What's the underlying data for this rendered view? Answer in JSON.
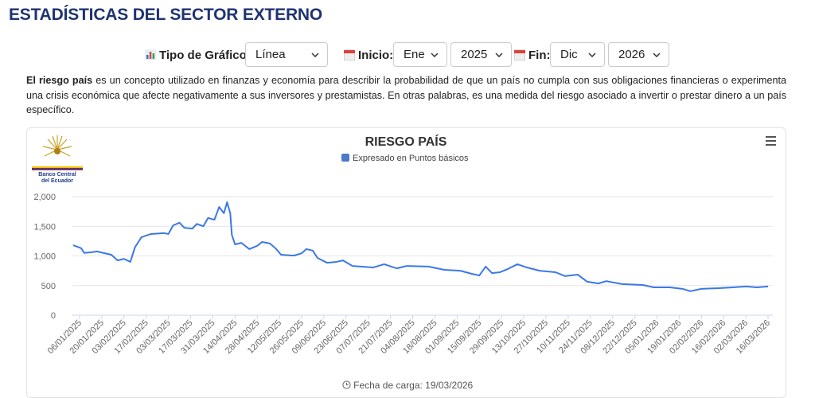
{
  "header": {
    "title": "ESTADÍSTICAS DEL SECTOR EXTERNO"
  },
  "controls": {
    "chart_type_label": "Tipo de Gráfico:",
    "chart_type": "Línea",
    "start_label": "Inicio:",
    "start_month": "Ene",
    "start_year": "2025",
    "end_label": "Fin:",
    "end_month": "Dic",
    "end_year": "2026"
  },
  "description": {
    "term": "El riesgo país",
    "text": " es un concepto utilizado en finanzas y economía para describir la probabilidad de que un país no cumpla con sus obligaciones financieras o experimenta una crisis económica que afecte negativamente a sus inversores y prestamistas. En otras palabras, es una medida del riesgo asociado a invertir o prestar dinero a un país específico."
  },
  "logo": {
    "line1": "Banco Central",
    "line2": "del Ecuador"
  },
  "chart_data": {
    "type": "line",
    "title": "RIESGO PAÍS",
    "subtitle": "Expresado en Puntos básicos",
    "color": "#3b78e7",
    "grid": true,
    "x": [
      "02/01/2025",
      "07/01/2025",
      "09/01/2025",
      "13/01/2025",
      "17/01/2025",
      "21/01/2025",
      "26/01/2025",
      "30/01/2025",
      "03/02/2025",
      "07/02/2025",
      "10/02/2025",
      "14/02/2025",
      "20/02/2025",
      "28/02/2025",
      "03/03/2025",
      "06/03/2025",
      "10/03/2025",
      "13/03/2025",
      "18/03/2025",
      "21/03/2025",
      "25/03/2025",
      "28/03/2025",
      "01/04/2025",
      "04/04/2025",
      "07/04/2025",
      "09/04/2025",
      "11/04/2025",
      "12/04/2025",
      "14/04/2025",
      "18/04/2025",
      "23/04/2025",
      "28/04/2025",
      "01/05/2025",
      "06/05/2025",
      "10/05/2025",
      "13/05/2025",
      "21/05/2025",
      "26/05/2025",
      "29/05/2025",
      "02/06/2025",
      "05/06/2025",
      "11/06/2025",
      "17/06/2025",
      "21/06/2025",
      "27/06/2025",
      "10/07/2025",
      "17/07/2025",
      "25/07/2025",
      "31/07/2025",
      "14/08/2025",
      "24/08/2025",
      "03/09/2025",
      "10/09/2025",
      "15/09/2025",
      "19/09/2025",
      "23/09/2025",
      "28/09/2025",
      "03/10/2025",
      "09/10/2025",
      "15/10/2025",
      "23/10/2025",
      "02/11/2025",
      "08/11/2025",
      "16/11/2025",
      "22/11/2025",
      "29/11/2025",
      "04/12/2025",
      "14/12/2025",
      "27/12/2025",
      "03/01/2026",
      "13/01/2026",
      "21/01/2026",
      "26/01/2026",
      "02/02/2026",
      "12/02/2026",
      "22/02/2026",
      "02/03/2026",
      "09/03/2026",
      "16/03/2026"
    ],
    "values": [
      1180,
      1130,
      1050,
      1060,
      1075,
      1050,
      1020,
      925,
      950,
      900,
      1150,
      1315,
      1370,
      1385,
      1370,
      1515,
      1560,
      1475,
      1460,
      1540,
      1500,
      1640,
      1610,
      1825,
      1720,
      1905,
      1720,
      1355,
      1195,
      1220,
      1115,
      1170,
      1235,
      1210,
      1115,
      1020,
      1005,
      1045,
      1115,
      1090,
      965,
      885,
      900,
      925,
      830,
      805,
      860,
      790,
      830,
      820,
      765,
      750,
      700,
      670,
      820,
      710,
      725,
      780,
      860,
      805,
      750,
      725,
      660,
      685,
      565,
      535,
      575,
      525,
      510,
      470,
      470,
      445,
      405,
      445,
      455,
      470,
      485,
      470,
      485
    ],
    "xlim": [
      "01/01/2025",
      "19/03/2026"
    ],
    "xticks": [
      "06/01/2025",
      "20/01/2025",
      "03/02/2025",
      "17/02/2025",
      "03/03/2025",
      "17/03/2025",
      "31/03/2025",
      "14/04/2025",
      "28/04/2025",
      "12/05/2025",
      "26/05/2025",
      "09/06/2025",
      "23/06/2025",
      "07/07/2025",
      "21/07/2025",
      "04/08/2025",
      "18/08/2025",
      "01/09/2025",
      "15/09/2025",
      "29/09/2025",
      "13/10/2025",
      "27/10/2025",
      "10/11/2025",
      "24/11/2025",
      "08/12/2025",
      "22/12/2025",
      "05/01/2026",
      "19/01/2026",
      "02/02/2026",
      "16/02/2026",
      "02/03/2026",
      "16/03/2026"
    ],
    "ylim": [
      0,
      2000
    ],
    "yticks": [
      0,
      500,
      {
        "value": 1000,
        "label": "1,000"
      },
      {
        "value": 1500,
        "label": "1,500"
      },
      {
        "value": 2000,
        "label": "2,000"
      }
    ]
  },
  "footer": {
    "load_date": "Fecha de carga: 19/03/2026"
  }
}
